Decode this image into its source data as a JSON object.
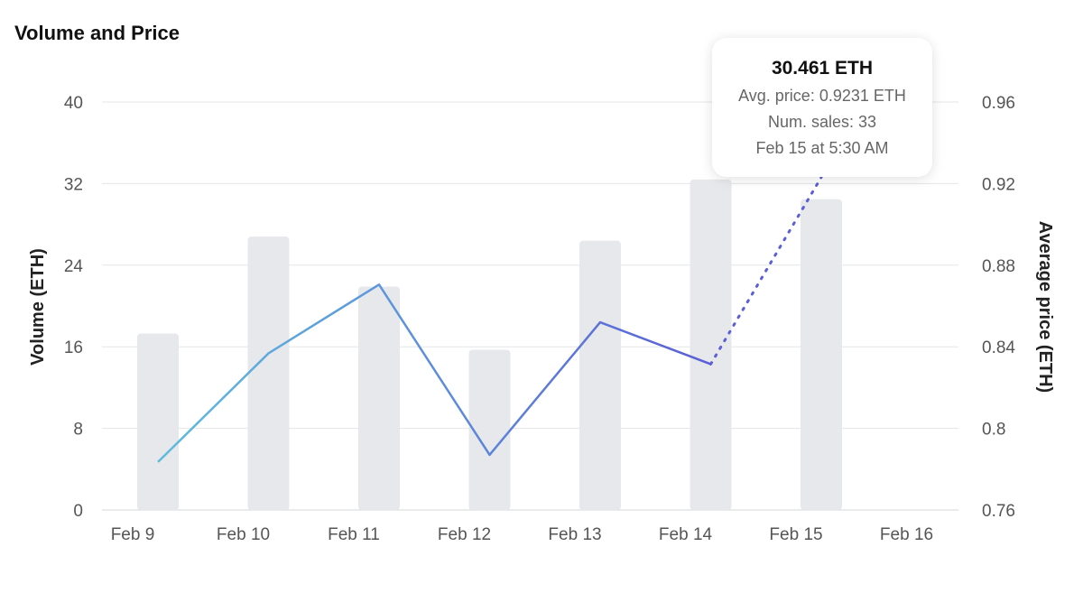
{
  "chart_data": {
    "type": "bar+line",
    "title": "Volume and Price",
    "categories": [
      "Feb 9",
      "Feb 10",
      "Feb 11",
      "Feb 12",
      "Feb 13",
      "Feb 14",
      "Feb 15",
      "Feb 16"
    ],
    "volume": {
      "name": "Volume (ETH)",
      "values": [
        17.3,
        26.8,
        21.9,
        15.7,
        26.4,
        32.4,
        30.461,
        null
      ]
    },
    "price": {
      "name": "Average price (ETH)",
      "values": [
        0.7835,
        0.8368,
        0.8705,
        0.787,
        0.852,
        0.8315,
        0.9231,
        null
      ],
      "projected_from_index": 5
    },
    "ylabel_left": "Volume (ETH)",
    "ylabel_right": "Average price (ETH)",
    "ylim_left": [
      0,
      40
    ],
    "yticks_left": [
      "0",
      "8",
      "16",
      "24",
      "32",
      "40"
    ],
    "ylim_right": [
      0.76,
      0.96
    ],
    "yticks_right": [
      "0.76",
      "0.8",
      "0.84",
      "0.88",
      "0.92",
      "0.96"
    ],
    "colors": {
      "bar": "#e7e8ec",
      "line_start": "#5fbcdc",
      "line_end": "#5b5fd6",
      "grid": "#e4e5e8"
    },
    "tooltip": {
      "value": "30.461 ETH",
      "avg_price": "Avg. price: 0.9231 ETH",
      "num_sales": "Num. sales: 33",
      "date": "Feb 15 at 5:30 AM"
    }
  }
}
